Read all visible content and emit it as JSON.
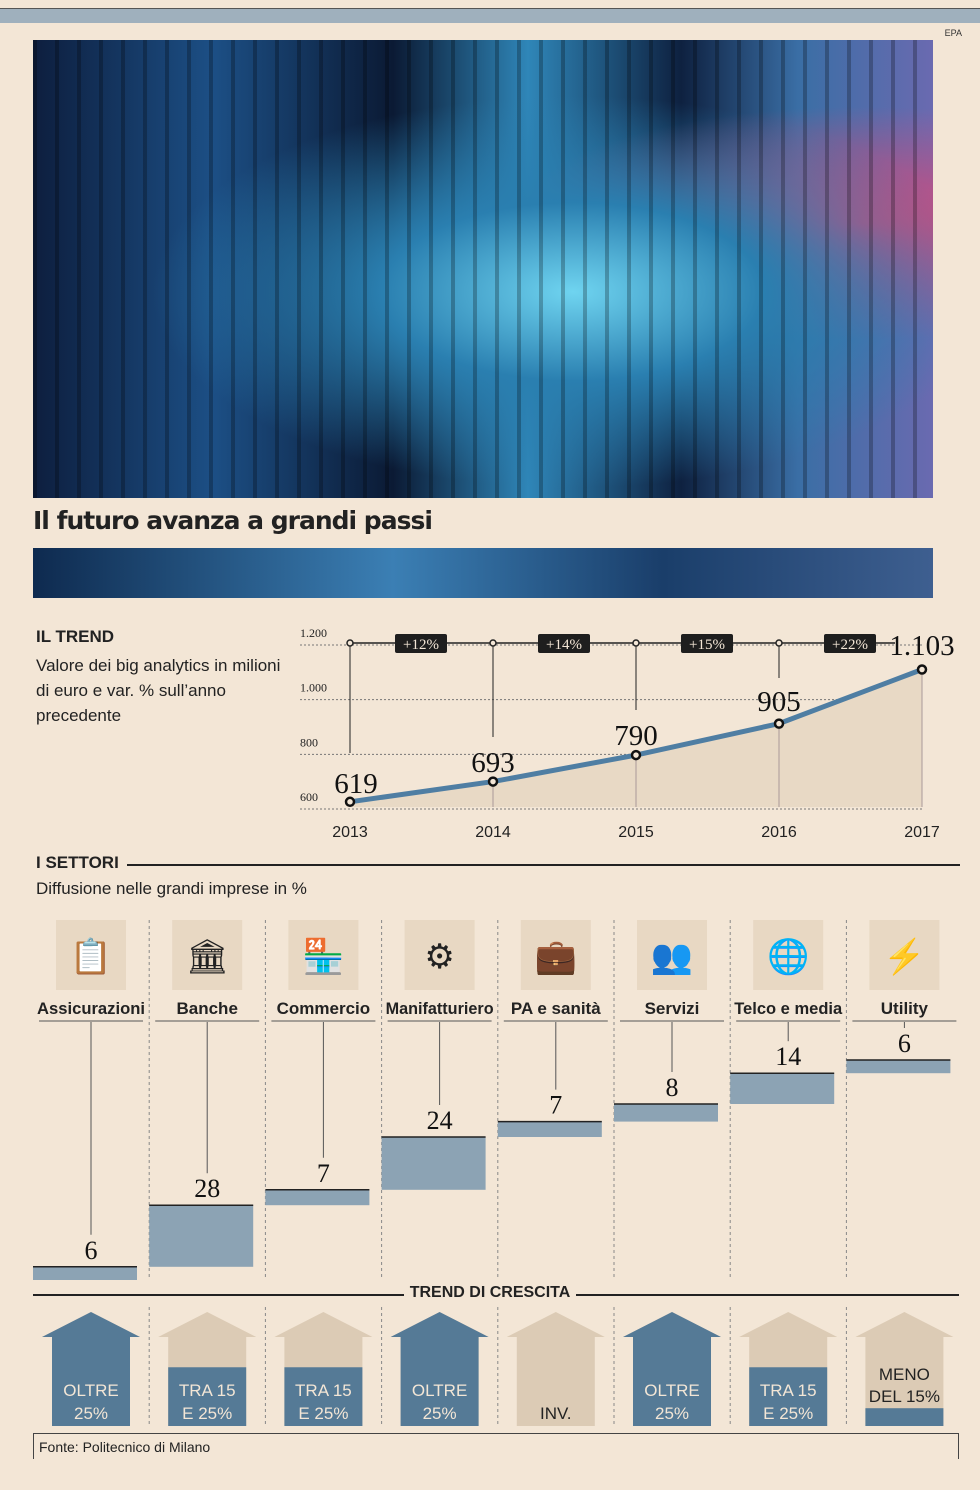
{
  "photo_credit": "EPA",
  "title": "Il futuro avanza a grandi passi",
  "trend": {
    "heading": "IL TREND",
    "description": "Valore dei big analytics in milioni di euro e var. % sull’anno precedente"
  },
  "chart_data": [
    {
      "type": "line",
      "title": "IL TREND",
      "ylabel": "milioni di euro",
      "x": [
        "2013",
        "2014",
        "2015",
        "2016",
        "2017"
      ],
      "values": [
        619,
        693,
        790,
        905,
        1103
      ],
      "value_labels": [
        "619",
        "693",
        "790",
        "905",
        "1.103"
      ],
      "yoy_changes": [
        "+12%",
        "+14%",
        "+15%",
        "+22%"
      ],
      "yticks": [
        "600",
        "800",
        "1.000",
        "1.200"
      ],
      "ylim": [
        600,
        1200
      ],
      "grid": true,
      "colors": {
        "line": "#4f7ea3",
        "area": "#e8d9c5"
      }
    },
    {
      "type": "bar",
      "subtype": "waterfall",
      "title": "I SETTORI",
      "subtitle": "Diffusione nelle grandi imprese in %",
      "categories": [
        "Assicurazioni",
        "Banche",
        "Commercio",
        "Manifatturiero",
        "PA e sanità",
        "Servizi",
        "Telco e media",
        "Utility"
      ],
      "values": [
        6,
        28,
        7,
        24,
        7,
        8,
        14,
        6
      ],
      "colors": {
        "bar": "#8ca3b4"
      }
    }
  ],
  "settori": {
    "heading": "I SETTORI",
    "description": "Diffusione nelle grandi imprese in %"
  },
  "crescita": {
    "heading": "TREND DI CRESCITA",
    "items": [
      {
        "label1": "OLTRE",
        "label2": "25%",
        "fill": 1.0
      },
      {
        "label1": "TRA 15",
        "label2": "E 25%",
        "fill": 0.66
      },
      {
        "label1": "TRA 15",
        "label2": "E 25%",
        "fill": 0.66
      },
      {
        "label1": "OLTRE",
        "label2": "25%",
        "fill": 1.0
      },
      {
        "label1": "",
        "label2": "INV.",
        "fill": 0
      },
      {
        "label1": "OLTRE",
        "label2": "25%",
        "fill": 1.0
      },
      {
        "label1": "TRA 15",
        "label2": "E 25%",
        "fill": 0.66
      },
      {
        "label1": "MENO",
        "label2": "DEL 15%",
        "fill": 0.2
      }
    ]
  },
  "source": "Fonte: Politecnico di Milano",
  "colors": {
    "blue": "#557a96",
    "beige": "#dccbb5",
    "bg": "#f3e6d6"
  }
}
